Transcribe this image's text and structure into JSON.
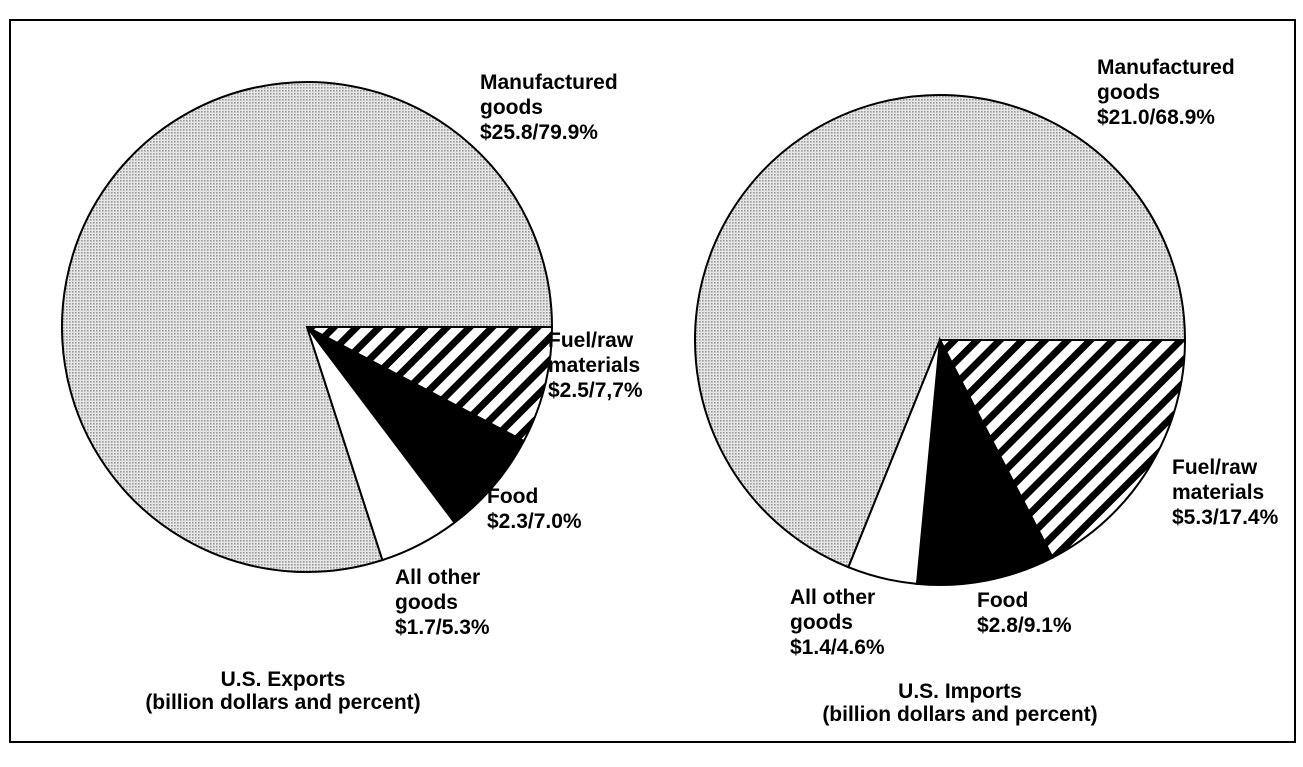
{
  "chart_data": [
    {
      "type": "pie",
      "title": "U.S. Exports",
      "subtitle": "(billion dollars and percent)",
      "categories": [
        "Manufactured goods",
        "Fuel/raw materials",
        "Food",
        "All other goods"
      ],
      "values": [
        79.9,
        7.7,
        7.0,
        5.3
      ],
      "value_labels": [
        "$25.8/79.9%",
        "$2.5/7,7%",
        "$2.3/7.0%",
        "$1.7/5.3%"
      ],
      "colors": [
        "#9a9a9a",
        "#000000",
        "#000000",
        "#ffffff"
      ],
      "patterns": [
        "dots",
        "stripes",
        "solid",
        "solid"
      ]
    },
    {
      "type": "pie",
      "title": "U.S. Imports",
      "subtitle": "(billion dollars and percent)",
      "categories": [
        "Manufactured goods",
        "Fuel/raw materials",
        "Food",
        "All other goods"
      ],
      "values": [
        68.9,
        17.4,
        9.1,
        4.6
      ],
      "value_labels": [
        "$21.0/68.9%",
        "$5.3/17.4%",
        "$2.8/9.1%",
        "$1.4/4.6%"
      ],
      "colors": [
        "#9a9a9a",
        "#000000",
        "#000000",
        "#ffffff"
      ],
      "patterns": [
        "dots",
        "stripes",
        "solid",
        "solid"
      ]
    }
  ]
}
